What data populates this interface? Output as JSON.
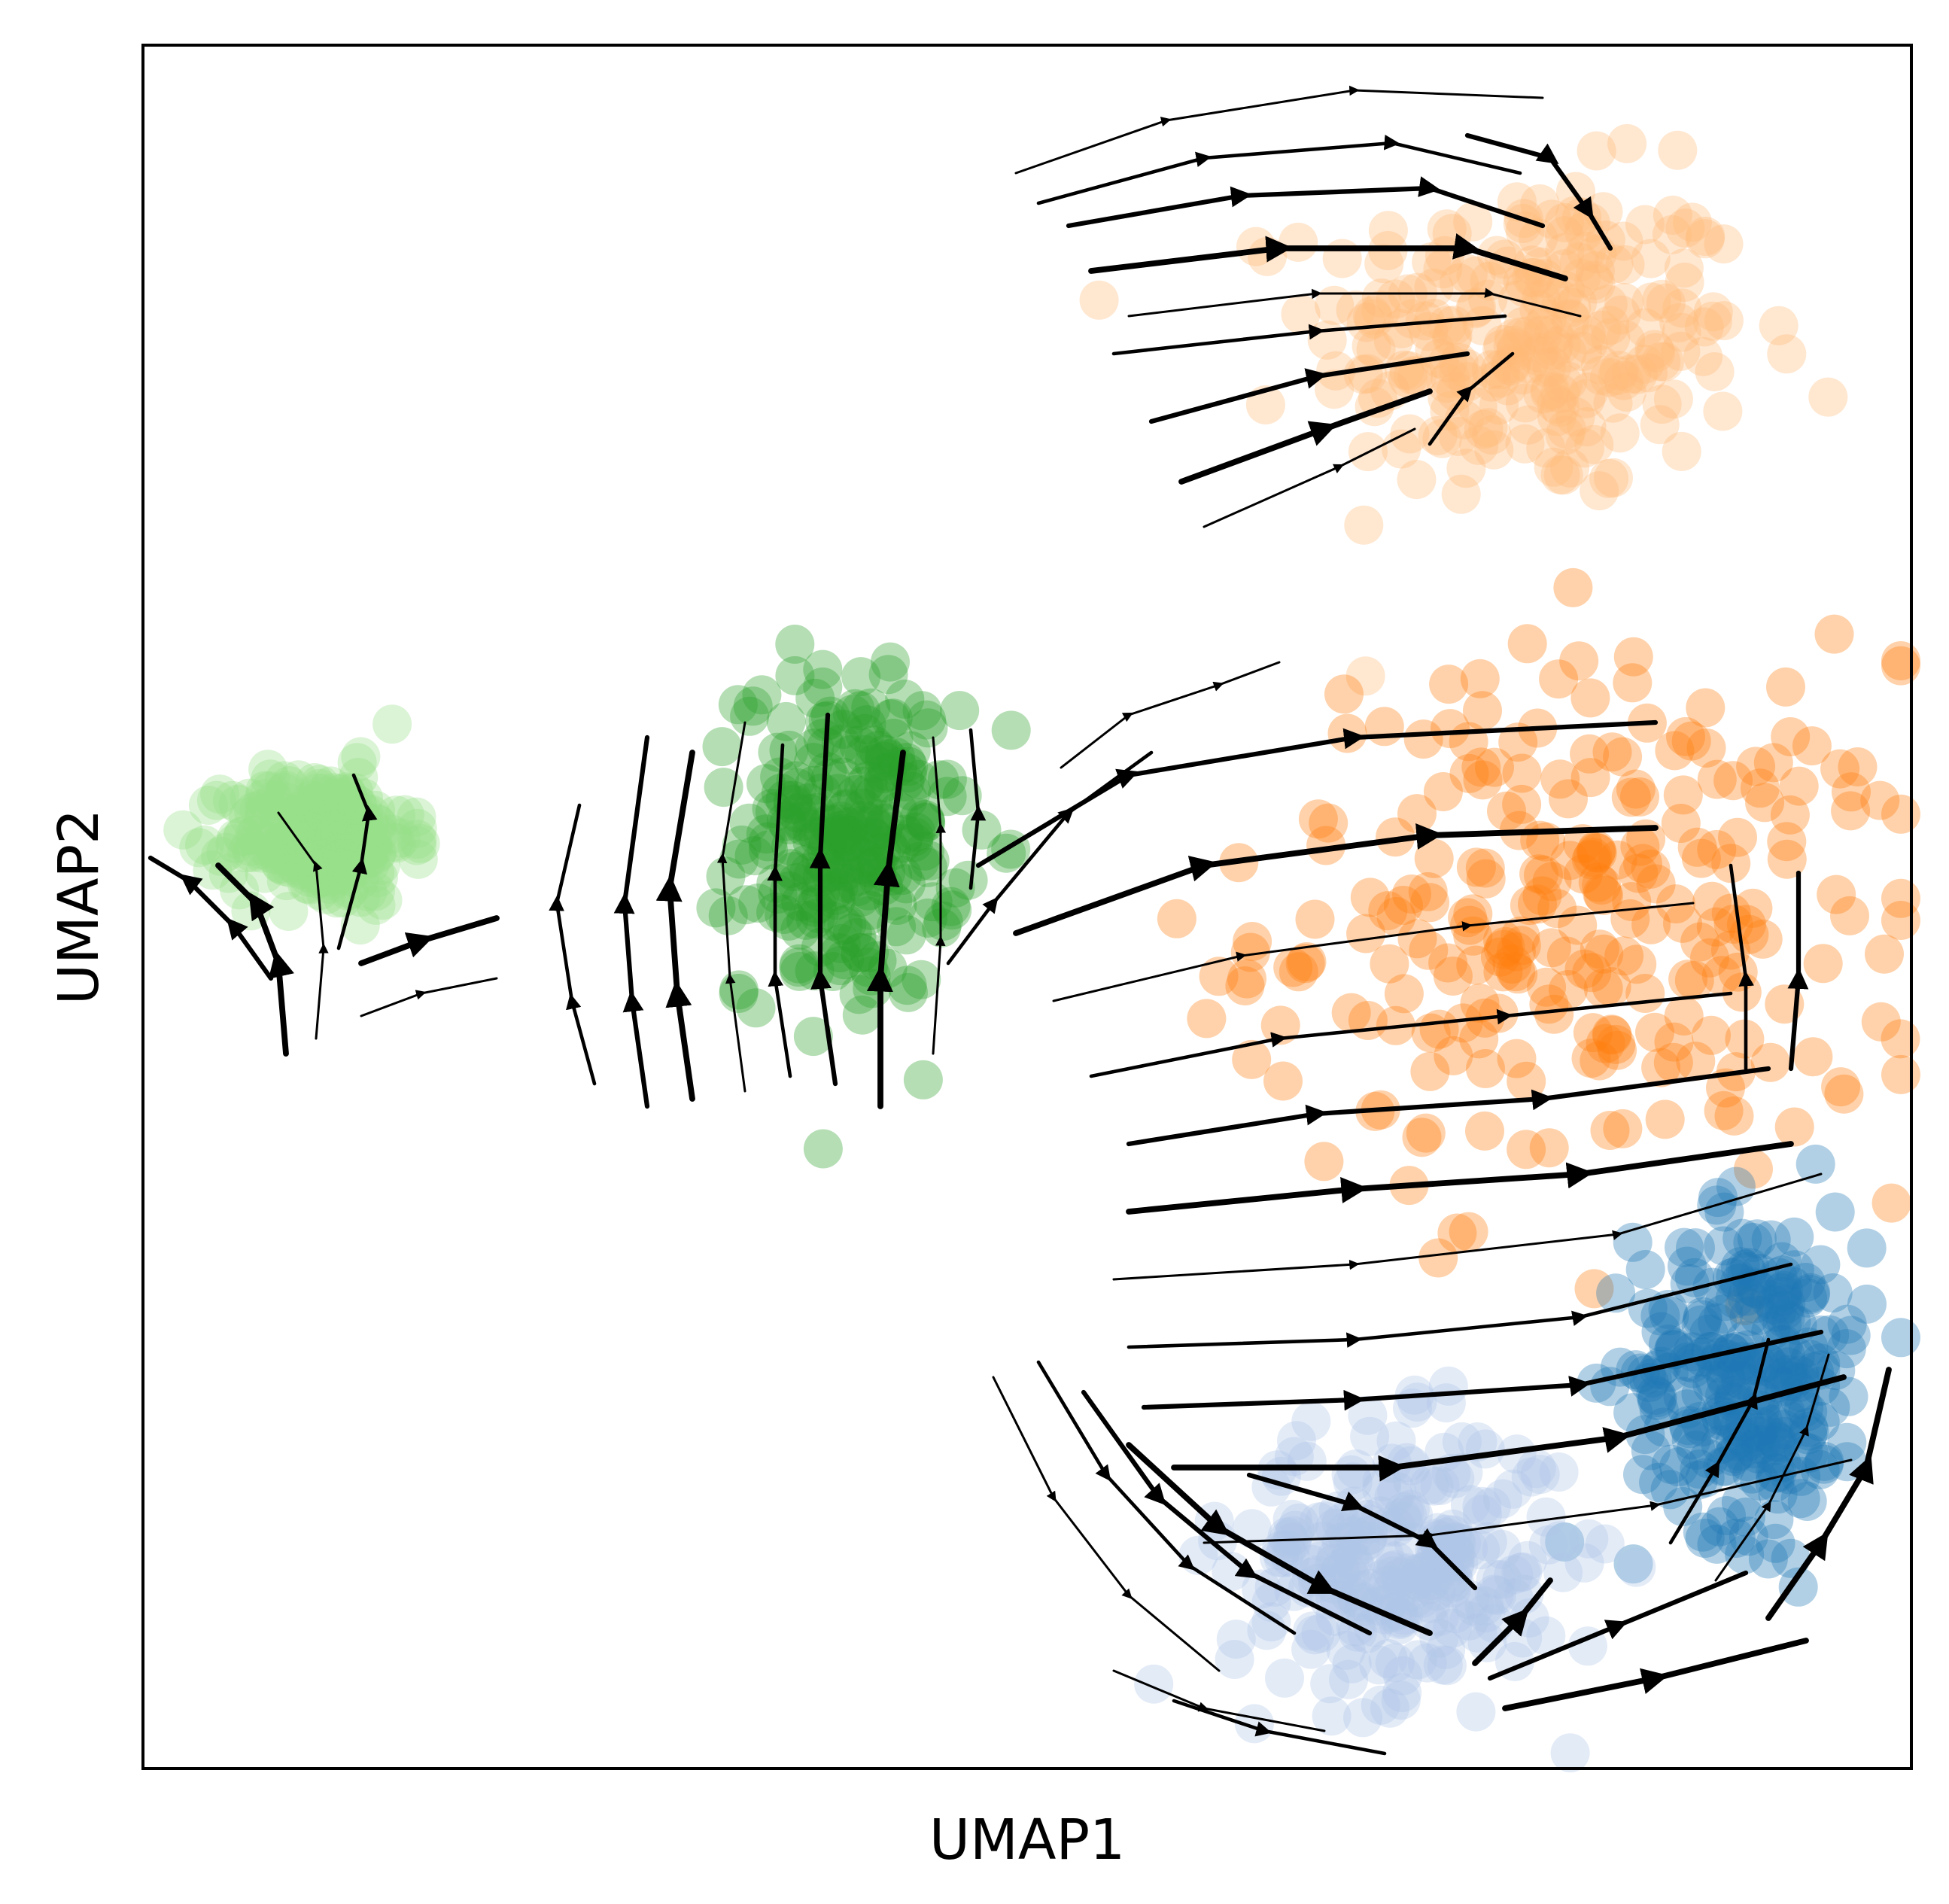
{
  "chart_data": {
    "type": "scatter",
    "title": "",
    "xlabel": "UMAP1",
    "ylabel": "UMAP2",
    "xlim": [
      0,
      1
    ],
    "ylim": [
      0,
      1
    ],
    "ticks": "none",
    "grid": false,
    "legend": "none",
    "overlay": "velocity-stream",
    "series": [
      {
        "color": "#ffbb78",
        "center": [
          0.785,
          0.83
        ],
        "spread": [
          0.11,
          0.085
        ]
      },
      {
        "color": "#ff7f0e",
        "center": [
          0.82,
          0.49
        ],
        "spread": [
          0.17,
          0.14
        ]
      },
      {
        "color": "#2ca02c",
        "center": [
          0.4,
          0.54
        ],
        "spread": [
          0.055,
          0.085
        ]
      },
      {
        "color": "#98df8a",
        "center": [
          0.1,
          0.54
        ],
        "spread": [
          0.045,
          0.035
        ]
      },
      {
        "color": "#1f77b4",
        "center": [
          0.91,
          0.23
        ],
        "spread": [
          0.06,
          0.085
        ]
      },
      {
        "color": "#aec7e8",
        "center": [
          0.71,
          0.12
        ],
        "spread": [
          0.085,
          0.07
        ]
      }
    ],
    "colors": {
      "frame": "#000000",
      "streamline": "#000000"
    }
  }
}
